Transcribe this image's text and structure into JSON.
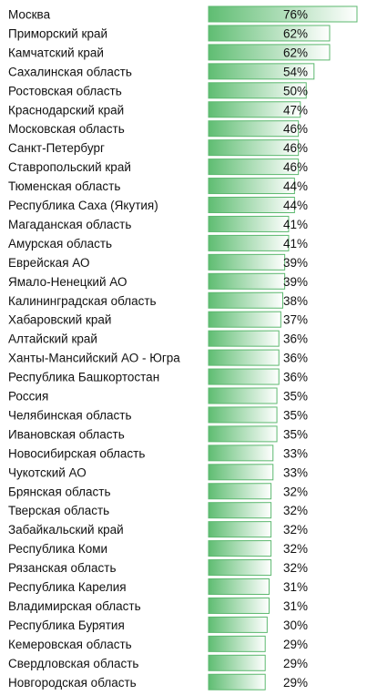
{
  "chart_data": {
    "type": "bar",
    "orientation": "horizontal",
    "title": "",
    "xlabel": "",
    "ylabel": "",
    "value_format": "percent",
    "bar_gradient": [
      "#5fbd72",
      "#ffffff"
    ],
    "categories": [
      "Москва",
      "Приморский край",
      "Камчатский край",
      "Сахалинская область",
      "Ростовская область",
      "Краснодарский край",
      "Московская область",
      "Санкт-Петербург",
      "Ставропольский край",
      "Тюменская область",
      "Республика Саха (Якутия)",
      "Магаданская область",
      "Амурская область",
      "Еврейская АО",
      "Ямало-Ненецкий АО",
      "Калининградская область",
      "Хабаровский край",
      "Алтайский край",
      "Ханты-Мансийский АО - Югра",
      "Республика Башкортостан",
      "Россия",
      "Челябинская область",
      "Ивановская область",
      "Новосибирская область",
      "Чукотский АО",
      "Брянская область",
      "Тверская область",
      "Забайкальский край",
      "Республика Коми",
      "Рязанская область",
      "Республика Карелия",
      "Владимирская область",
      "Республика Бурятия",
      "Кемеровская область",
      "Свердловская область",
      "Новгородская область"
    ],
    "values": [
      76,
      62,
      62,
      54,
      50,
      47,
      46,
      46,
      46,
      44,
      44,
      41,
      41,
      39,
      39,
      38,
      37,
      36,
      36,
      36,
      35,
      35,
      35,
      33,
      33,
      32,
      32,
      32,
      32,
      32,
      31,
      31,
      30,
      29,
      29,
      29
    ],
    "value_labels": [
      "76%",
      "62%",
      "62%",
      "54%",
      "50%",
      "47%",
      "46%",
      "46%",
      "46%",
      "44%",
      "44%",
      "41%",
      "41%",
      "39%",
      "39%",
      "38%",
      "37%",
      "36%",
      "36%",
      "36%",
      "35%",
      "35%",
      "35%",
      "33%",
      "33%",
      "32%",
      "32%",
      "32%",
      "32%",
      "32%",
      "31%",
      "31%",
      "30%",
      "29%",
      "29%",
      "29%"
    ]
  }
}
